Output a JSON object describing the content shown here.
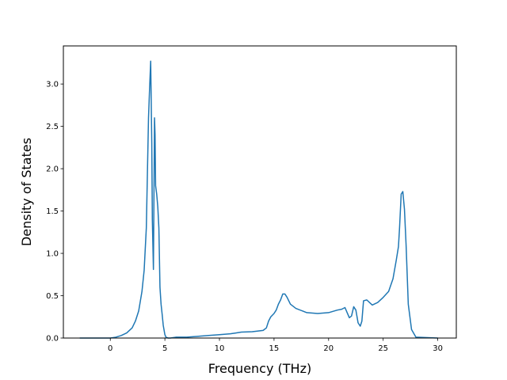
{
  "chart_data": {
    "type": "line",
    "title": "",
    "xlabel": "Frequency (THz)",
    "ylabel": "Density of States",
    "xlim": [
      -4.3,
      31.7
    ],
    "ylim": [
      0.0,
      3.45
    ],
    "xticks": [
      0,
      5,
      10,
      15,
      20,
      25,
      30
    ],
    "xtick_labels": [
      "0",
      "5",
      "10",
      "15",
      "20",
      "25",
      "30"
    ],
    "yticks": [
      0.0,
      0.5,
      1.0,
      1.5,
      2.0,
      2.5,
      3.0
    ],
    "ytick_labels": [
      "0.0",
      "0.5",
      "1.0",
      "1.5",
      "2.0",
      "2.5",
      "3.0"
    ],
    "grid": false,
    "legend": "none",
    "series": [
      {
        "color": "#1f77b4",
        "x": [
          -2.8,
          -1.0,
          0.0,
          0.5,
          1.0,
          1.5,
          2.0,
          2.3,
          2.6,
          2.9,
          3.1,
          3.3,
          3.5,
          3.6,
          3.7,
          3.8,
          3.85,
          3.95,
          4.05,
          4.1,
          4.15,
          4.25,
          4.35,
          4.45,
          4.55,
          4.65,
          4.75,
          4.85,
          5.0,
          5.1,
          5.3,
          5.5,
          6.0,
          7.0,
          8.0,
          9.0,
          10.0,
          11.0,
          11.5,
          12.0,
          13.0,
          14.0,
          14.3,
          14.5,
          14.7,
          15.0,
          15.2,
          15.4,
          15.6,
          15.8,
          16.0,
          16.2,
          16.5,
          17.0,
          18.0,
          19.0,
          20.0,
          20.8,
          21.2,
          21.5,
          21.7,
          21.9,
          22.1,
          22.3,
          22.5,
          22.7,
          22.9,
          23.05,
          23.2,
          23.5,
          24.0,
          24.5,
          25.0,
          25.5,
          25.9,
          26.2,
          26.4,
          26.5,
          26.65,
          26.8,
          26.95,
          27.1,
          27.3,
          27.6,
          28.0,
          30.0
        ],
        "y": [
          0.0,
          0.0,
          0.0,
          0.01,
          0.03,
          0.06,
          0.12,
          0.2,
          0.32,
          0.55,
          0.8,
          1.3,
          2.6,
          2.95,
          3.27,
          2.3,
          1.4,
          0.81,
          2.6,
          2.4,
          1.8,
          1.7,
          1.55,
          1.3,
          0.6,
          0.4,
          0.28,
          0.15,
          0.04,
          0.01,
          0.0,
          0.0,
          0.01,
          0.01,
          0.02,
          0.03,
          0.04,
          0.05,
          0.06,
          0.07,
          0.075,
          0.09,
          0.12,
          0.2,
          0.25,
          0.29,
          0.33,
          0.4,
          0.45,
          0.52,
          0.52,
          0.48,
          0.4,
          0.35,
          0.3,
          0.29,
          0.3,
          0.33,
          0.34,
          0.36,
          0.3,
          0.24,
          0.26,
          0.37,
          0.33,
          0.18,
          0.14,
          0.2,
          0.44,
          0.45,
          0.39,
          0.42,
          0.48,
          0.55,
          0.7,
          0.92,
          1.08,
          1.3,
          1.7,
          1.73,
          1.52,
          1.1,
          0.4,
          0.1,
          0.01,
          0.0
        ]
      }
    ]
  }
}
